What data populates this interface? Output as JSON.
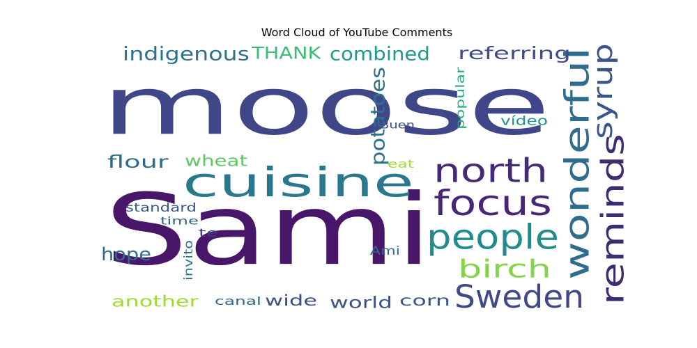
{
  "chart_data": {
    "type": "wordcloud",
    "title": "Word Cloud of YouTube Comments",
    "words": [
      {
        "text": "moose",
        "weight": 1.0,
        "color": "#3f4788"
      },
      {
        "text": "Sami",
        "weight": 0.95,
        "color": "#481769"
      },
      {
        "text": "cuisine",
        "weight": 0.5,
        "color": "#29788e"
      },
      {
        "text": "north",
        "weight": 0.38,
        "color": "#452a78"
      },
      {
        "text": "focus",
        "weight": 0.36,
        "color": "#482576"
      },
      {
        "text": "people",
        "weight": 0.33,
        "color": "#228b8d"
      },
      {
        "text": "wonderful",
        "weight": 0.3,
        "color": "#2f6c8e"
      },
      {
        "text": "reminds",
        "weight": 0.28,
        "color": "#3f2c70"
      },
      {
        "text": "syrup",
        "weight": 0.27,
        "color": "#3a548c"
      },
      {
        "text": "Sweden",
        "weight": 0.3,
        "color": "#3f4889"
      },
      {
        "text": "birch",
        "weight": 0.24,
        "color": "#84d44b"
      },
      {
        "text": "indigenous",
        "weight": 0.18,
        "color": "#2d718e"
      },
      {
        "text": "THANK",
        "weight": 0.17,
        "color": "#3bbb75"
      },
      {
        "text": "combined",
        "weight": 0.18,
        "color": "#1f9a8a"
      },
      {
        "text": "referring",
        "weight": 0.17,
        "color": "#3e4c8a"
      },
      {
        "text": "potatoes",
        "weight": 0.16,
        "color": "#2c728e"
      },
      {
        "text": "flour",
        "weight": 0.16,
        "color": "#2f6b8e"
      },
      {
        "text": "wheat",
        "weight": 0.15,
        "color": "#5ec962"
      },
      {
        "text": "hope",
        "weight": 0.16,
        "color": "#2f6b8e"
      },
      {
        "text": "another",
        "weight": 0.15,
        "color": "#a0da39"
      },
      {
        "text": "world",
        "weight": 0.15,
        "color": "#3b528b"
      },
      {
        "text": "corn",
        "weight": 0.14,
        "color": "#39568c"
      },
      {
        "text": "wide",
        "weight": 0.14,
        "color": "#3d4d8a"
      },
      {
        "text": "canal",
        "weight": 0.1,
        "color": "#31688e"
      },
      {
        "text": "standard",
        "weight": 0.1,
        "color": "#38588c"
      },
      {
        "text": "time",
        "weight": 0.1,
        "color": "#31688e"
      },
      {
        "text": "te",
        "weight": 0.1,
        "color": "#433e85"
      },
      {
        "text": "invito",
        "weight": 0.1,
        "color": "#2c738e"
      },
      {
        "text": "Ami",
        "weight": 0.1,
        "color": "#2f6c8e"
      },
      {
        "text": "eat",
        "weight": 0.09,
        "color": "#a5db36"
      },
      {
        "text": "Buen",
        "weight": 0.1,
        "color": "#3e4989"
      },
      {
        "text": "vídeo",
        "weight": 0.1,
        "color": "#1f958b"
      },
      {
        "text": "popular",
        "weight": 0.1,
        "color": "#27ad81"
      }
    ]
  }
}
